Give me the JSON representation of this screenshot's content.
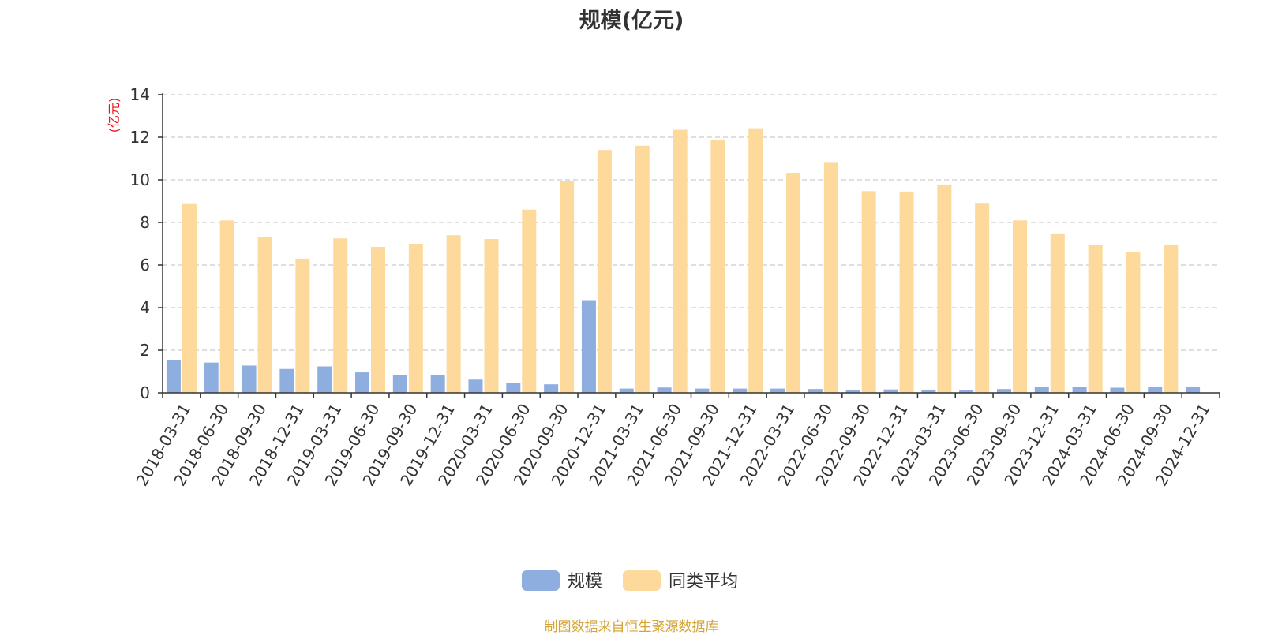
{
  "chart_data": {
    "type": "bar",
    "title": "规模(亿元)",
    "ylabel": "(亿元)",
    "xlabel": "",
    "ylim": [
      0,
      14
    ],
    "yticks": [
      0,
      2,
      4,
      6,
      8,
      10,
      12,
      14
    ],
    "grid": true,
    "legend_position": "bottom-center",
    "categories": [
      "2018-03-31",
      "2018-06-30",
      "2018-09-30",
      "2018-12-31",
      "2019-03-31",
      "2019-06-30",
      "2019-09-30",
      "2019-12-31",
      "2020-03-31",
      "2020-06-30",
      "2020-09-30",
      "2020-12-31",
      "2021-03-31",
      "2021-06-30",
      "2021-09-30",
      "2021-12-31",
      "2022-03-31",
      "2022-06-30",
      "2022-09-30",
      "2022-12-31",
      "2023-03-31",
      "2023-06-30",
      "2023-09-30",
      "2023-12-31",
      "2024-03-31",
      "2024-06-30",
      "2024-09-30",
      "2024-12-31"
    ],
    "series": [
      {
        "name": "规模",
        "color": "#8eaee0",
        "values": [
          1.55,
          1.42,
          1.28,
          1.12,
          1.24,
          0.96,
          0.84,
          0.82,
          0.62,
          0.48,
          0.4,
          4.35,
          0.2,
          0.25,
          0.2,
          0.2,
          0.2,
          0.18,
          0.15,
          0.16,
          0.15,
          0.14,
          0.18,
          0.28,
          0.26,
          0.24,
          0.27,
          0.27
        ]
      },
      {
        "name": "同类平均",
        "color": "#fdd99b",
        "values": [
          8.9,
          8.1,
          7.3,
          6.3,
          7.25,
          6.85,
          7.0,
          7.4,
          7.22,
          8.6,
          9.95,
          11.4,
          11.6,
          12.35,
          11.85,
          12.42,
          10.33,
          10.8,
          9.47,
          9.45,
          9.78,
          8.92,
          8.1,
          7.45,
          6.95,
          6.6,
          6.95,
          null
        ]
      }
    ]
  },
  "source_text": "制图数据来自恒生聚源数据库",
  "colors": {
    "axis": "#333333",
    "grid": "#cccccc",
    "ylabel": "#e8141a",
    "source": "#d4a437"
  }
}
